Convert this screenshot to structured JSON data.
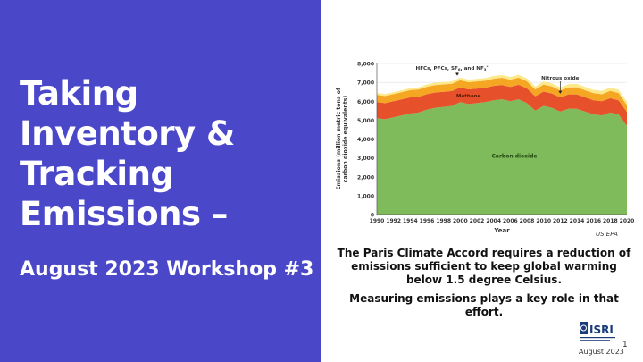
{
  "slide": {
    "title": "Taking Inventory & Tracking Emissions –",
    "subtitle": "August 2023 Workshop #3",
    "source": "US EPA",
    "caption_main": "The Paris Climate Accord requires a reduction of emissions sufficient to keep global warming below 1.5 degree Celsius.",
    "caption_sub": "Measuring emissions plays a key role in that effort.",
    "page_number": "1",
    "footer_date": "August 2023",
    "logo_text": "ISRI",
    "colors": {
      "panel": "#4a48c9",
      "carbon": "#7fba5b",
      "methane": "#e6502a",
      "nitrous": "#f5a623",
      "hfc": "#fde98a"
    }
  },
  "chart_data": {
    "type": "area",
    "stacked": true,
    "xlabel": "Year",
    "ylabel": "Emissions (million metric tons of carbon dioxide equivalents)",
    "ylim": [
      0,
      8000
    ],
    "yticks": [
      "0",
      "1,000",
      "2,000",
      "3,000",
      "4,000",
      "5,000",
      "6,000",
      "7,000",
      "8,000"
    ],
    "xticks": [
      "1990",
      "1992",
      "1994",
      "1996",
      "1998",
      "2000",
      "2002",
      "2004",
      "2006",
      "2008",
      "2010",
      "2012",
      "2014",
      "2016",
      "2018",
      "2020"
    ],
    "x": [
      1990,
      1991,
      1992,
      1993,
      1994,
      1995,
      1996,
      1997,
      1998,
      1999,
      2000,
      2001,
      2002,
      2003,
      2004,
      2005,
      2006,
      2007,
      2008,
      2009,
      2010,
      2011,
      2012,
      2013,
      2014,
      2015,
      2016,
      2017,
      2018,
      2019,
      2020
    ],
    "series": [
      {
        "name": "Carbon dioxide",
        "color": "#7fba5b",
        "values": [
          5100,
          5050,
          5150,
          5250,
          5350,
          5400,
          5550,
          5650,
          5700,
          5750,
          5950,
          5850,
          5900,
          5950,
          6050,
          6100,
          6000,
          6100,
          5900,
          5500,
          5750,
          5650,
          5450,
          5600,
          5600,
          5450,
          5300,
          5250,
          5400,
          5300,
          4700
        ]
      },
      {
        "name": "Methane",
        "color": "#e6502a",
        "values": [
          850,
          850,
          850,
          850,
          850,
          830,
          820,
          810,
          800,
          790,
          780,
          780,
          770,
          760,
          760,
          760,
          760,
          770,
          780,
          760,
          760,
          760,
          750,
          760,
          760,
          750,
          750,
          750,
          760,
          750,
          730
        ]
      },
      {
        "name": "Nitrous oxide",
        "color": "#f5a623",
        "values": [
          380,
          380,
          380,
          380,
          385,
          390,
          395,
          395,
          390,
          385,
          380,
          375,
          375,
          375,
          380,
          380,
          380,
          380,
          375,
          360,
          370,
          370,
          365,
          375,
          380,
          375,
          375,
          375,
          390,
          380,
          360
        ]
      },
      {
        "name": "HFCs, PFCs, SF6, and NF3",
        "color": "#fde98a",
        "values": [
          100,
          100,
          100,
          100,
          105,
          110,
          120,
          125,
          130,
          130,
          140,
          135,
          140,
          140,
          145,
          150,
          150,
          155,
          160,
          155,
          165,
          165,
          165,
          170,
          175,
          175,
          175,
          175,
          180,
          180,
          180
        ]
      }
    ],
    "annotations": [
      {
        "label": "HFCs, PFCs, SF",
        "sub": "6",
        "mid": ", and NF",
        "sub2": "3",
        "end": "*",
        "x": 1999,
        "arrow_y": 7400
      },
      {
        "label": "Nitrous oxide",
        "x": 2012,
        "arrow_y": 6450
      },
      {
        "label": "Methane",
        "x": 2001,
        "y": 6300
      },
      {
        "label": "Carbon dioxide",
        "x": 2006.5,
        "y": 3000
      }
    ]
  }
}
